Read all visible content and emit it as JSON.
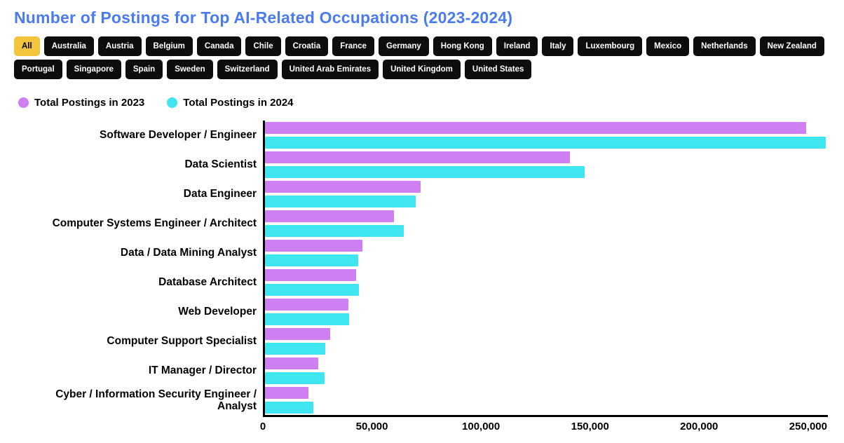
{
  "page": {
    "title": "Number of Postings for Top AI-Related Occupations (2023-2024)"
  },
  "filters": {
    "active": "All",
    "items": [
      "All",
      "Australia",
      "Austria",
      "Belgium",
      "Canada",
      "Chile",
      "Croatia",
      "France",
      "Germany",
      "Hong Kong",
      "Ireland",
      "Italy",
      "Luxembourg",
      "Mexico",
      "Netherlands",
      "New Zealand",
      "Portugal",
      "Singapore",
      "Spain",
      "Sweden",
      "Switzerland",
      "United Arab Emirates",
      "United Kingdom",
      "United States"
    ]
  },
  "legend": {
    "items": [
      {
        "label": "Total Postings in 2023",
        "color": "#CE80F2"
      },
      {
        "label": "Total Postings in 2024",
        "color": "#3FE6EF"
      }
    ]
  },
  "chart_data": {
    "type": "bar",
    "orientation": "horizontal",
    "title": "Number of Postings for Top AI-Related Occupations (2023-2024)",
    "categories": [
      "Software Developer / Engineer",
      "Data Scientist",
      "Data Engineer",
      "Computer Systems Engineer / Architect",
      "Data / Data Mining Analyst",
      "Database Architect",
      "Web Developer",
      "Computer Support Specialist",
      "IT Manager / Director",
      "Cyber / Information Security Engineer / Analyst"
    ],
    "series": [
      {
        "name": "Total Postings in 2023",
        "color": "#CE80F2",
        "values": [
          250000,
          141000,
          72000,
          59500,
          45000,
          42000,
          38500,
          30000,
          24500,
          20000
        ]
      },
      {
        "name": "Total Postings in 2024",
        "color": "#3FE6EF",
        "values": [
          259000,
          147500,
          69500,
          64000,
          43000,
          43500,
          39000,
          28000,
          27500,
          22500
        ]
      }
    ],
    "xlabel": "",
    "ylabel": "",
    "xlim": [
      0,
      260000
    ],
    "xticks": [
      0,
      50000,
      100000,
      150000,
      200000,
      250000
    ],
    "xtick_labels": [
      "0",
      "50,000",
      "100,000",
      "150,000",
      "200,000",
      "250,000"
    ],
    "grid": false,
    "legend_position": "top-left"
  },
  "colors": {
    "title": "#4A7BEF",
    "filter_active_bg": "#F2C53D",
    "filter_bg": "#0D0D0D",
    "axis": "#000000"
  }
}
